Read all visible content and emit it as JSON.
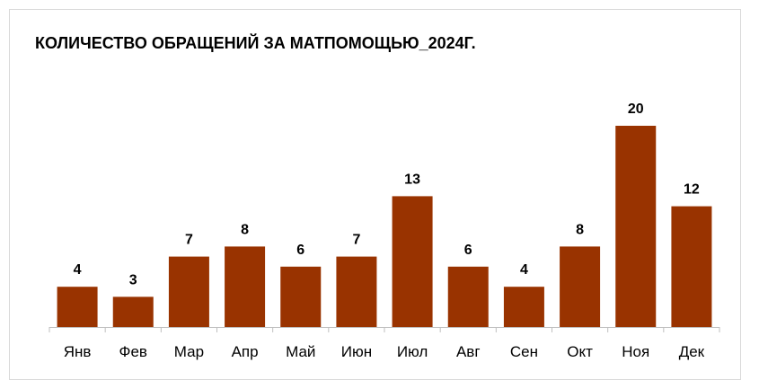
{
  "chart_data": {
    "type": "bar",
    "title": "КОЛИЧЕСТВО ОБРАЩЕНИЙ ЗА МАТПОМОЩЬЮ_2024Г.",
    "categories": [
      "Янв",
      "Фев",
      "Мар",
      "Апр",
      "Май",
      "Июн",
      "Июл",
      "Авг",
      "Сен",
      "Окт",
      "Ноя",
      "Дек"
    ],
    "values": [
      4,
      3,
      7,
      8,
      6,
      7,
      13,
      6,
      4,
      8,
      20,
      12
    ],
    "xlabel": "",
    "ylabel": "",
    "ylim": [
      0,
      20
    ],
    "grid": false,
    "legend": "none",
    "bar_color": "#993300",
    "axis_color": "#bfbfbf"
  }
}
